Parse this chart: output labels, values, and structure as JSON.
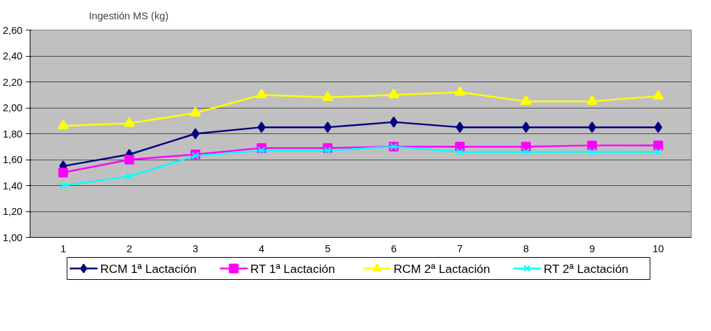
{
  "chart_data": {
    "type": "line",
    "ylabel": "Ingestión MS (kg)",
    "categories": [
      "1",
      "2",
      "3",
      "4",
      "5",
      "6",
      "7",
      "8",
      "9",
      "10"
    ],
    "ylim": [
      1.0,
      2.6
    ],
    "yticks": [
      {
        "value": 1.0,
        "label": "1,00"
      },
      {
        "value": 1.2,
        "label": "1,20"
      },
      {
        "value": 1.4,
        "label": "1,40"
      },
      {
        "value": 1.6,
        "label": "1,60"
      },
      {
        "value": 1.8,
        "label": "1,80"
      },
      {
        "value": 2.0,
        "label": "2,00"
      },
      {
        "value": 2.2,
        "label": "2,20"
      },
      {
        "value": 2.4,
        "label": "2,40"
      },
      {
        "value": 2.6,
        "label": "2,60"
      }
    ],
    "grid": "y",
    "legend": "bottom",
    "line_style": "solid",
    "series": [
      {
        "name": "RCM 1ª Lactación",
        "color": "#000080",
        "marker": "diamond",
        "values": [
          1.55,
          1.64,
          1.8,
          1.85,
          1.85,
          1.89,
          1.85,
          1.85,
          1.85,
          1.85
        ]
      },
      {
        "name": "RT 1ª Lactación",
        "color": "#ff00ff",
        "marker": "square",
        "values": [
          1.5,
          1.6,
          1.64,
          1.69,
          1.69,
          1.7,
          1.7,
          1.7,
          1.71,
          1.71
        ]
      },
      {
        "name": "RCM 2ª Lactación",
        "color": "#ffff00",
        "marker": "triangle",
        "values": [
          1.86,
          1.88,
          1.96,
          2.1,
          2.08,
          2.1,
          2.12,
          2.05,
          2.05,
          2.09
        ]
      },
      {
        "name": "RT 2ª Lactación",
        "color": "#00ffff",
        "marker": "cross",
        "values": [
          1.4,
          1.47,
          1.63,
          1.67,
          1.67,
          1.7,
          1.66,
          1.66,
          1.66,
          1.66
        ]
      }
    ]
  }
}
